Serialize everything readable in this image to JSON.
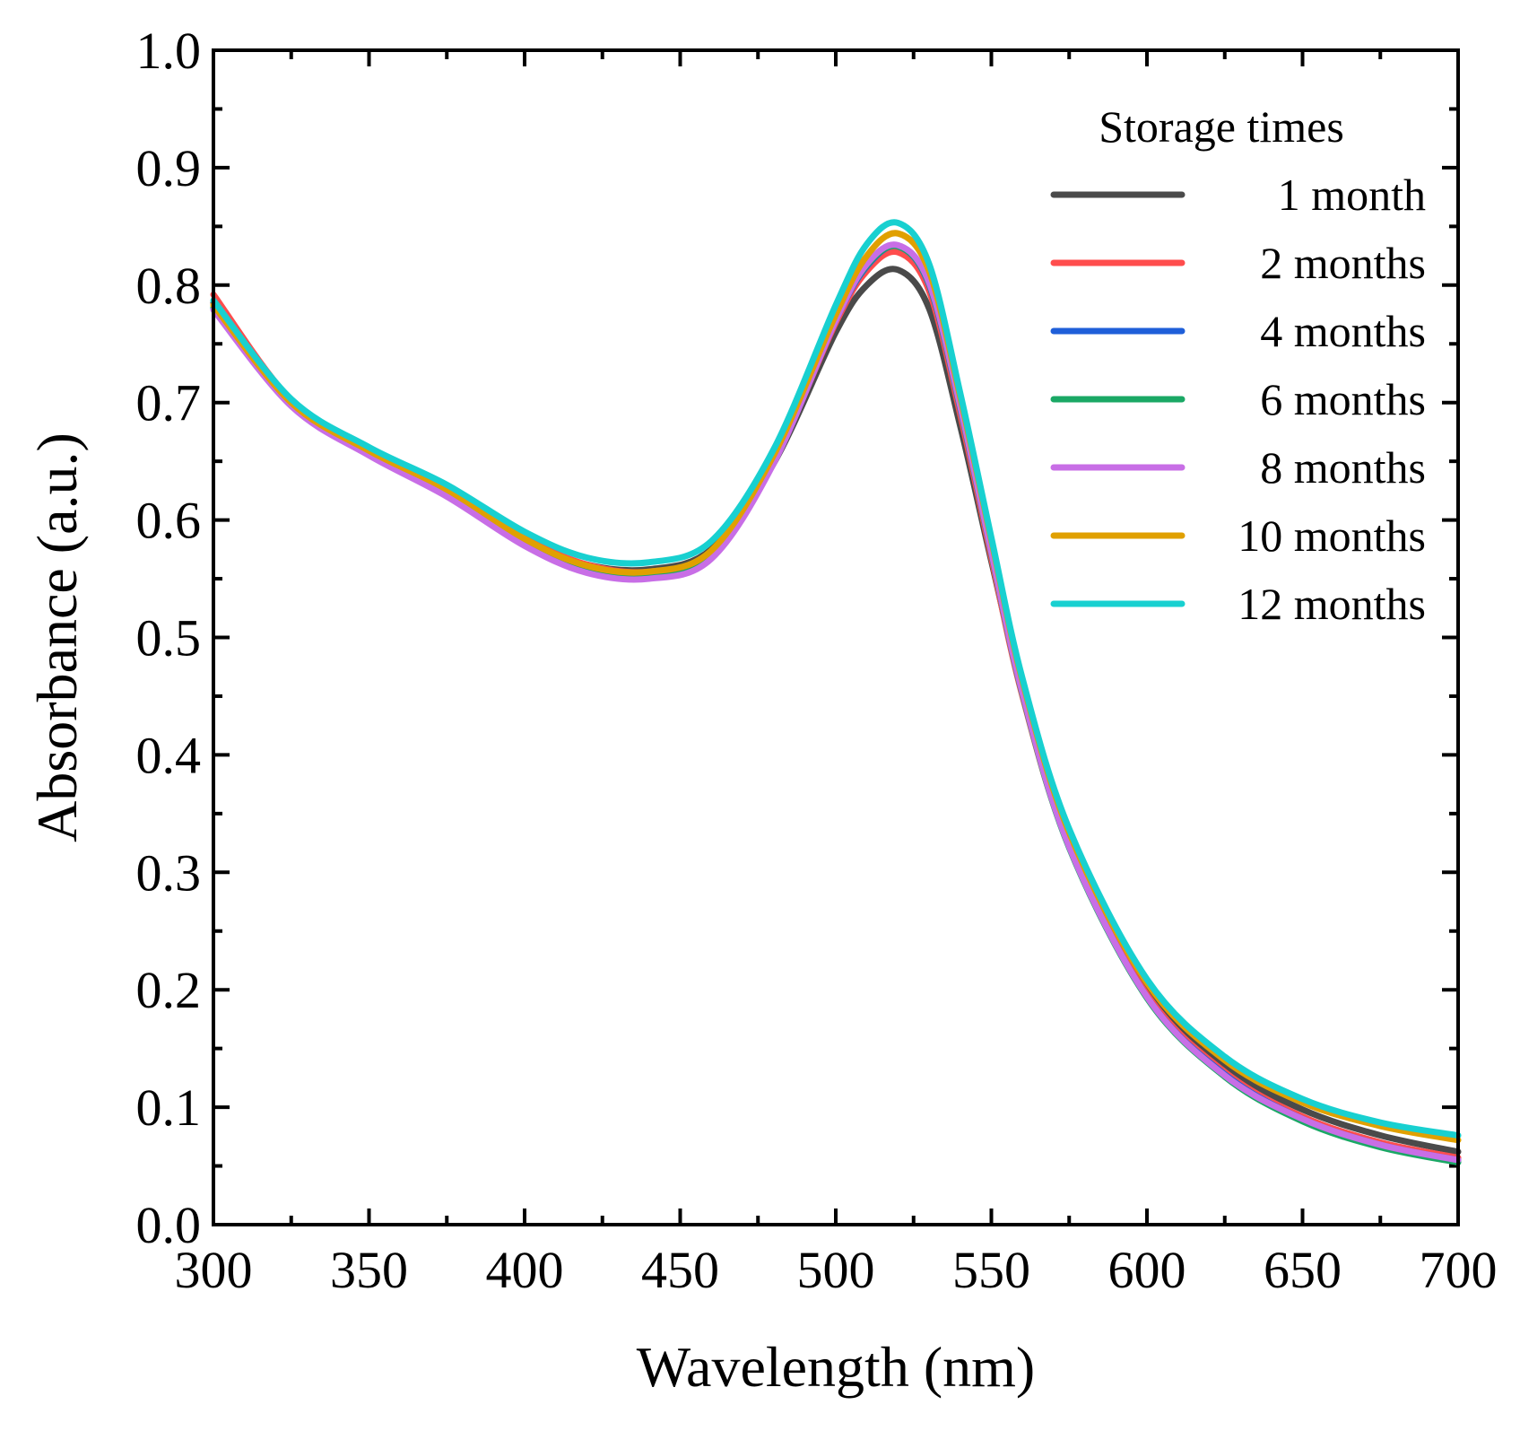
{
  "chart_data": {
    "type": "line",
    "title": "",
    "xlabel": "Wavelength (nm)",
    "ylabel": "Absorbance (a.u.)",
    "xlim": [
      300,
      700
    ],
    "ylim": [
      0.0,
      1.0
    ],
    "x_ticks": [
      300,
      350,
      400,
      450,
      500,
      550,
      600,
      650,
      700
    ],
    "x_tick_labels": [
      "300",
      "350",
      "400",
      "450",
      "500",
      "550",
      "600",
      "650",
      "700"
    ],
    "y_ticks": [
      0.0,
      0.1,
      0.2,
      0.3,
      0.4,
      0.5,
      0.6,
      0.7,
      0.8,
      0.9,
      1.0
    ],
    "y_tick_labels": [
      "0.0",
      "0.1",
      "0.2",
      "0.3",
      "0.4",
      "0.5",
      "0.6",
      "0.7",
      "0.8",
      "0.9",
      "1.0"
    ],
    "grid": false,
    "legend": {
      "title": "Storage times",
      "placement": "top-right"
    },
    "x": [
      300,
      325,
      350,
      375,
      400,
      420,
      440,
      460,
      480,
      500,
      510,
      520,
      530,
      540,
      550,
      560,
      575,
      600,
      625,
      650,
      675,
      700
    ],
    "series": [
      {
        "name": "1 month",
        "color": "#4a4a4a",
        "values": [
          0.785,
          0.7,
          0.658,
          0.625,
          0.583,
          0.562,
          0.558,
          0.575,
          0.648,
          0.76,
          0.8,
          0.813,
          0.78,
          0.68,
          0.565,
          0.455,
          0.33,
          0.2,
          0.135,
          0.098,
          0.076,
          0.062
        ]
      },
      {
        "name": "2 months",
        "color": "#ff4d4d",
        "values": [
          0.792,
          0.702,
          0.66,
          0.626,
          0.585,
          0.562,
          0.556,
          0.573,
          0.65,
          0.768,
          0.812,
          0.828,
          0.795,
          0.69,
          0.568,
          0.45,
          0.322,
          0.196,
          0.13,
          0.092,
          0.07,
          0.057
        ]
      },
      {
        "name": "4 months",
        "color": "#1f5fd9",
        "values": [
          0.78,
          0.698,
          0.657,
          0.622,
          0.58,
          0.558,
          0.552,
          0.57,
          0.65,
          0.77,
          0.816,
          0.833,
          0.8,
          0.695,
          0.572,
          0.452,
          0.322,
          0.194,
          0.128,
          0.09,
          0.068,
          0.055
        ]
      },
      {
        "name": "6 months",
        "color": "#1aa865",
        "values": [
          0.781,
          0.699,
          0.658,
          0.623,
          0.58,
          0.558,
          0.552,
          0.57,
          0.651,
          0.771,
          0.817,
          0.833,
          0.801,
          0.696,
          0.572,
          0.452,
          0.321,
          0.193,
          0.126,
          0.088,
          0.066,
          0.053
        ]
      },
      {
        "name": "8 months",
        "color": "#c86ee6",
        "values": [
          0.779,
          0.697,
          0.655,
          0.62,
          0.578,
          0.555,
          0.55,
          0.567,
          0.648,
          0.77,
          0.818,
          0.834,
          0.802,
          0.697,
          0.573,
          0.453,
          0.322,
          0.194,
          0.127,
          0.09,
          0.068,
          0.055
        ]
      },
      {
        "name": "10 months",
        "color": "#e0a000",
        "values": [
          0.783,
          0.7,
          0.659,
          0.626,
          0.584,
          0.561,
          0.556,
          0.574,
          0.655,
          0.775,
          0.825,
          0.844,
          0.812,
          0.705,
          0.583,
          0.463,
          0.334,
          0.206,
          0.14,
          0.104,
          0.084,
          0.072
        ]
      },
      {
        "name": "12 months",
        "color": "#18d0d0",
        "values": [
          0.787,
          0.703,
          0.662,
          0.63,
          0.59,
          0.568,
          0.564,
          0.582,
          0.66,
          0.783,
          0.835,
          0.853,
          0.818,
          0.708,
          0.585,
          0.465,
          0.337,
          0.209,
          0.143,
          0.107,
          0.087,
          0.076
        ]
      }
    ]
  }
}
